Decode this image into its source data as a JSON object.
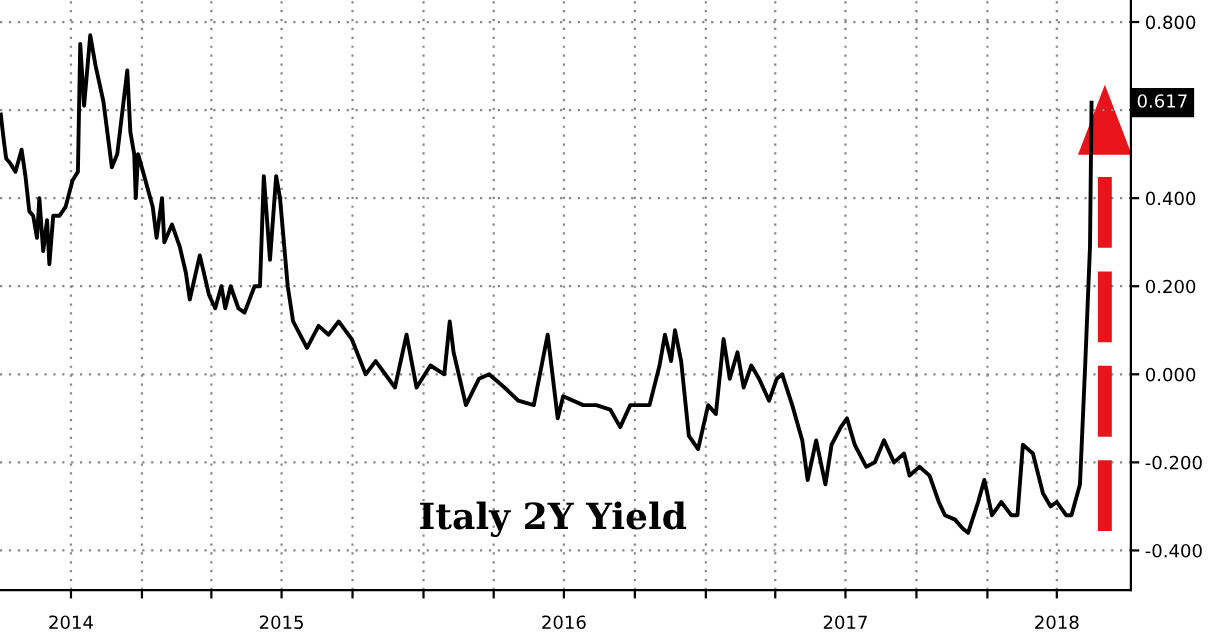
{
  "chart_data": {
    "type": "line",
    "title": "Italy 2Y Yield",
    "x": [
      "2014-07-02",
      "2014-07-06",
      "2014-07-09",
      "2014-07-14",
      "2014-07-21",
      "2014-07-29",
      "2014-08-03",
      "2014-08-08",
      "2014-08-13",
      "2014-08-18",
      "2014-08-21",
      "2014-08-26",
      "2014-08-31",
      "2014-09-03",
      "2014-09-08",
      "2014-09-16",
      "2014-09-24",
      "2014-10-03",
      "2014-10-10",
      "2014-10-13",
      "2014-10-18",
      "2014-10-26",
      "2014-11-02",
      "2014-11-12",
      "2014-11-23",
      "2014-11-30",
      "2014-12-13",
      "2014-12-17",
      "2014-12-22",
      "2014-12-24",
      "2014-12-27",
      "2015-01-04",
      "2015-01-15",
      "2015-01-20",
      "2015-01-27",
      "2015-01-30",
      "2015-02-09",
      "2015-02-19",
      "2015-02-27",
      "2015-03-04",
      "2015-03-17",
      "2015-03-29",
      "2015-04-06",
      "2015-04-14",
      "2015-04-19",
      "2015-04-26",
      "2015-05-06",
      "2015-05-14",
      "2015-05-27",
      "2015-06-03",
      "2015-06-08",
      "2015-06-16",
      "2015-06-24",
      "2015-06-29",
      "2015-07-09",
      "2015-07-16",
      "2015-08-03",
      "2015-08-18",
      "2015-08-31",
      "2015-09-13",
      "2015-09-30",
      "2015-10-18",
      "2015-10-31",
      "2015-11-25",
      "2015-12-10",
      "2015-12-23",
      "2016-01-10",
      "2016-01-28",
      "2016-02-04",
      "2016-02-09",
      "2016-02-25",
      "2016-03-13",
      "2016-03-26",
      "2016-04-15",
      "2016-05-03",
      "2016-05-23",
      "2016-06-10",
      "2016-06-23",
      "2016-06-30",
      "2016-07-26",
      "2016-08-12",
      "2016-08-30",
      "2016-09-12",
      "2016-09-25",
      "2016-10-20",
      "2016-11-02",
      "2016-11-09",
      "2016-11-17",
      "2016-11-22",
      "2016-11-30",
      "2016-12-10",
      "2016-12-22",
      "2017-01-04",
      "2017-01-14",
      "2017-01-24",
      "2017-02-01",
      "2017-02-11",
      "2017-02-19",
      "2017-03-01",
      "2017-03-11",
      "2017-03-24",
      "2017-04-03",
      "2017-04-10",
      "2017-04-23",
      "2017-05-06",
      "2017-05-13",
      "2017-05-24",
      "2017-06-05",
      "2017-06-13",
      "2017-06-25",
      "2017-07-03",
      "2017-07-13",
      "2017-07-28",
      "2017-08-08",
      "2017-08-20",
      "2017-09-02",
      "2017-09-15",
      "2017-09-22",
      "2017-10-05",
      "2017-10-18",
      "2017-10-30",
      "2017-11-07",
      "2017-11-20",
      "2017-11-30",
      "2017-12-07",
      "2017-12-20",
      "2017-12-28",
      "2018-01-07",
      "2018-01-19",
      "2018-02-01",
      "2018-02-09",
      "2018-02-16",
      "2018-03-01",
      "2018-03-14",
      "2018-03-24",
      "2018-04-01",
      "2018-04-13",
      "2018-04-20",
      "2018-05-01",
      "2018-05-08",
      "2018-05-14",
      "2018-05-16"
    ],
    "series": [
      {
        "color": "#000000",
        "values": [
          0.59,
          0.53,
          0.49,
          0.48,
          0.46,
          0.51,
          0.45,
          0.37,
          0.36,
          0.31,
          0.4,
          0.28,
          0.35,
          0.25,
          0.36,
          0.36,
          0.38,
          0.44,
          0.46,
          0.75,
          0.61,
          0.77,
          0.7,
          0.62,
          0.47,
          0.5,
          0.69,
          0.55,
          0.5,
          0.4,
          0.5,
          0.45,
          0.38,
          0.31,
          0.4,
          0.3,
          0.34,
          0.29,
          0.23,
          0.17,
          0.27,
          0.18,
          0.15,
          0.2,
          0.15,
          0.2,
          0.15,
          0.14,
          0.2,
          0.2,
          0.45,
          0.26,
          0.45,
          0.4,
          0.2,
          0.12,
          0.06,
          0.11,
          0.09,
          0.12,
          0.08,
          0.0,
          0.03,
          -0.03,
          0.09,
          -0.03,
          0.02,
          0.0,
          0.12,
          0.05,
          -0.07,
          -0.01,
          0.0,
          -0.03,
          -0.06,
          -0.07,
          0.09,
          -0.1,
          -0.05,
          -0.07,
          -0.07,
          -0.08,
          -0.12,
          -0.07,
          -0.07,
          0.02,
          0.09,
          0.03,
          0.1,
          0.03,
          -0.14,
          -0.17,
          -0.07,
          -0.09,
          0.08,
          -0.01,
          0.05,
          -0.03,
          0.02,
          -0.01,
          -0.06,
          -0.01,
          0.0,
          -0.07,
          -0.15,
          -0.24,
          -0.15,
          -0.25,
          -0.16,
          -0.12,
          -0.1,
          -0.16,
          -0.21,
          -0.2,
          -0.15,
          -0.2,
          -0.18,
          -0.23,
          -0.21,
          -0.23,
          -0.29,
          -0.32,
          -0.33,
          -0.35,
          -0.36,
          -0.29,
          -0.24,
          -0.32,
          -0.29,
          -0.32,
          -0.32,
          -0.16,
          -0.18,
          -0.27,
          -0.3,
          -0.29,
          -0.32,
          -0.32,
          -0.25,
          0.03,
          0.29,
          0.617
        ]
      }
    ],
    "xlim": [
      "2014-07-01",
      "2018-07-06"
    ],
    "xticks": [
      {
        "value": "2014-10-01",
        "label": "2014"
      },
      {
        "value": "2015-01-01",
        "label": null
      },
      {
        "value": "2015-04-01",
        "label": null
      },
      {
        "value": "2015-07-01",
        "label": "2015"
      },
      {
        "value": "2015-10-01",
        "label": null
      },
      {
        "value": "2016-01-01",
        "label": null
      },
      {
        "value": "2016-04-01",
        "label": null
      },
      {
        "value": "2016-07-01",
        "label": "2016"
      },
      {
        "value": "2016-10-01",
        "label": null
      },
      {
        "value": "2017-01-01",
        "label": null
      },
      {
        "value": "2017-04-01",
        "label": null
      },
      {
        "value": "2017-07-01",
        "label": "2017"
      },
      {
        "value": "2017-10-01",
        "label": null
      },
      {
        "value": "2018-01-01",
        "label": null
      },
      {
        "value": "2018-04-01",
        "label": "2018"
      }
    ],
    "ylim": [
      -0.49,
      0.85
    ],
    "yticks": [
      {
        "value": 0.8,
        "label": "0.800"
      },
      {
        "value": 0.6,
        "label": null
      },
      {
        "value": 0.4,
        "label": "0.400"
      },
      {
        "value": 0.2,
        "label": "0.200"
      },
      {
        "value": 0.0,
        "label": "0.000"
      },
      {
        "value": -0.2,
        "label": "-0.200"
      },
      {
        "value": -0.4,
        "label": "-0.400"
      }
    ],
    "annotations": [
      {
        "text": "0.617",
        "x": "2018-05-16",
        "y": 0.617
      }
    ],
    "grid": true,
    "line_style": "solid",
    "marker": "none",
    "legend": false
  }
}
